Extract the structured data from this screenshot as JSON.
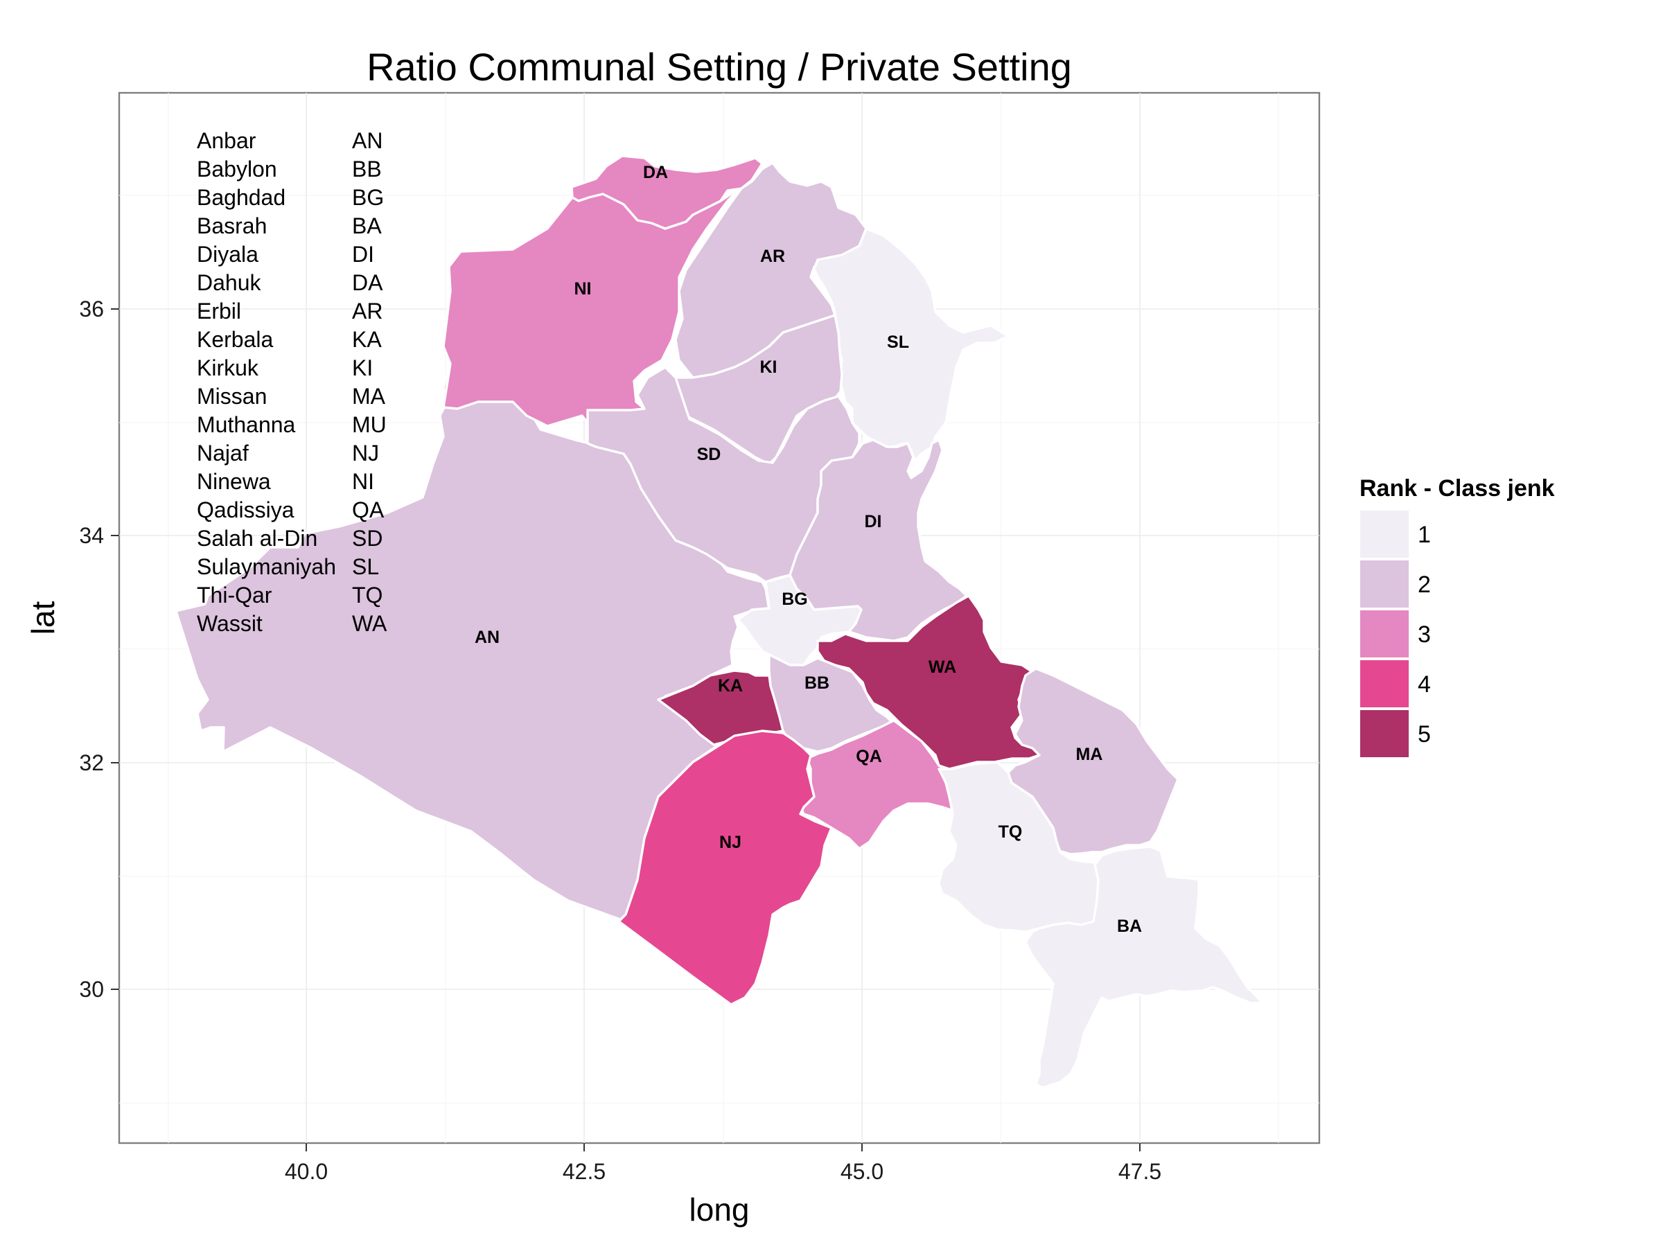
{
  "title": "Ratio Communal Setting  / Private Setting",
  "x_axis": {
    "label": "long",
    "ticks": [
      "40.0",
      "42.5",
      "45.0",
      "47.5"
    ]
  },
  "y_axis": {
    "label": "lat",
    "ticks": [
      "30",
      "32",
      "34",
      "36"
    ]
  },
  "legend": {
    "title": "Rank - Class jenk",
    "items": [
      {
        "label": "1",
        "color": "#f1eef6"
      },
      {
        "label": "2",
        "color": "#dcc3de"
      },
      {
        "label": "3",
        "color": "#e587c1"
      },
      {
        "label": "4",
        "color": "#e54890"
      },
      {
        "label": "5",
        "color": "#ad3066"
      }
    ]
  },
  "key_table": [
    {
      "name": "Anbar",
      "code": "AN"
    },
    {
      "name": "Babylon",
      "code": "BB"
    },
    {
      "name": "Baghdad",
      "code": "BG"
    },
    {
      "name": "Basrah",
      "code": "BA"
    },
    {
      "name": "Diyala",
      "code": "DI"
    },
    {
      "name": "Dahuk",
      "code": "DA"
    },
    {
      "name": "Erbil",
      "code": "AR"
    },
    {
      "name": "Kerbala",
      "code": "KA"
    },
    {
      "name": "Kirkuk",
      "code": "KI"
    },
    {
      "name": "Missan",
      "code": "MA"
    },
    {
      "name": "Muthanna",
      "code": "MU"
    },
    {
      "name": "Najaf",
      "code": "NJ"
    },
    {
      "name": "Ninewa",
      "code": "NI"
    },
    {
      "name": "Qadissiya",
      "code": "QA"
    },
    {
      "name": "Salah al-Din",
      "code": "SD"
    },
    {
      "name": "Sulaymaniyah",
      "code": "SL"
    },
    {
      "name": "Thi-Qar",
      "code": "TQ"
    },
    {
      "name": "Wassit",
      "code": "WA"
    }
  ],
  "provinces": [
    {
      "code": "AN",
      "rank": 2
    },
    {
      "code": "NI",
      "rank": 3
    },
    {
      "code": "DA",
      "rank": 3
    },
    {
      "code": "AR",
      "rank": 2
    },
    {
      "code": "SL",
      "rank": 1
    },
    {
      "code": "KI",
      "rank": 2
    },
    {
      "code": "SD",
      "rank": 2
    },
    {
      "code": "DI",
      "rank": 2
    },
    {
      "code": "BG",
      "rank": 1
    },
    {
      "code": "WA",
      "rank": 5
    },
    {
      "code": "KA",
      "rank": 5
    },
    {
      "code": "BB",
      "rank": 2
    },
    {
      "code": "QA",
      "rank": 3
    },
    {
      "code": "NJ",
      "rank": 4
    },
    {
      "code": "MA",
      "rank": 2
    },
    {
      "code": "TQ",
      "rank": 1
    },
    {
      "code": "BA",
      "rank": 1
    }
  ]
}
